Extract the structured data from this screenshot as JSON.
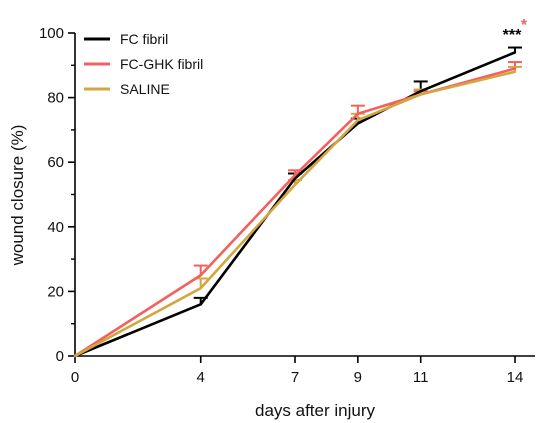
{
  "chart_data": {
    "type": "line",
    "title": "",
    "xlabel": "days after injury",
    "ylabel": "wound closure (%)",
    "x": [
      0,
      4,
      7,
      9,
      11,
      14
    ],
    "x_ticks": [
      0,
      4,
      7,
      9,
      11,
      14
    ],
    "ylim": [
      0,
      100
    ],
    "y_ticks": [
      0,
      20,
      40,
      60,
      80,
      100
    ],
    "grid": false,
    "legend_position": "top-left",
    "series": [
      {
        "name": "FC fibril",
        "color": "#000000",
        "values": [
          0,
          16,
          55,
          72,
          82,
          94
        ],
        "error": [
          0,
          2,
          1.5,
          1.5,
          3,
          1.5
        ]
      },
      {
        "name": "FC-GHK fibril",
        "color": "#f4605d",
        "values": [
          0,
          25,
          56,
          75,
          81,
          89
        ],
        "error": [
          0,
          3,
          1.5,
          2.5,
          1,
          2
        ]
      },
      {
        "name": "SALINE",
        "color": "#d4a640",
        "values": [
          0,
          21,
          53,
          73,
          81,
          88
        ],
        "error": [
          0,
          3,
          1.5,
          2,
          1.5,
          1.5
        ]
      }
    ],
    "annotations": [
      {
        "text": "***",
        "x": 14,
        "color": "#000000"
      },
      {
        "text": "*",
        "x": 14,
        "color": "#f4605d"
      }
    ]
  }
}
